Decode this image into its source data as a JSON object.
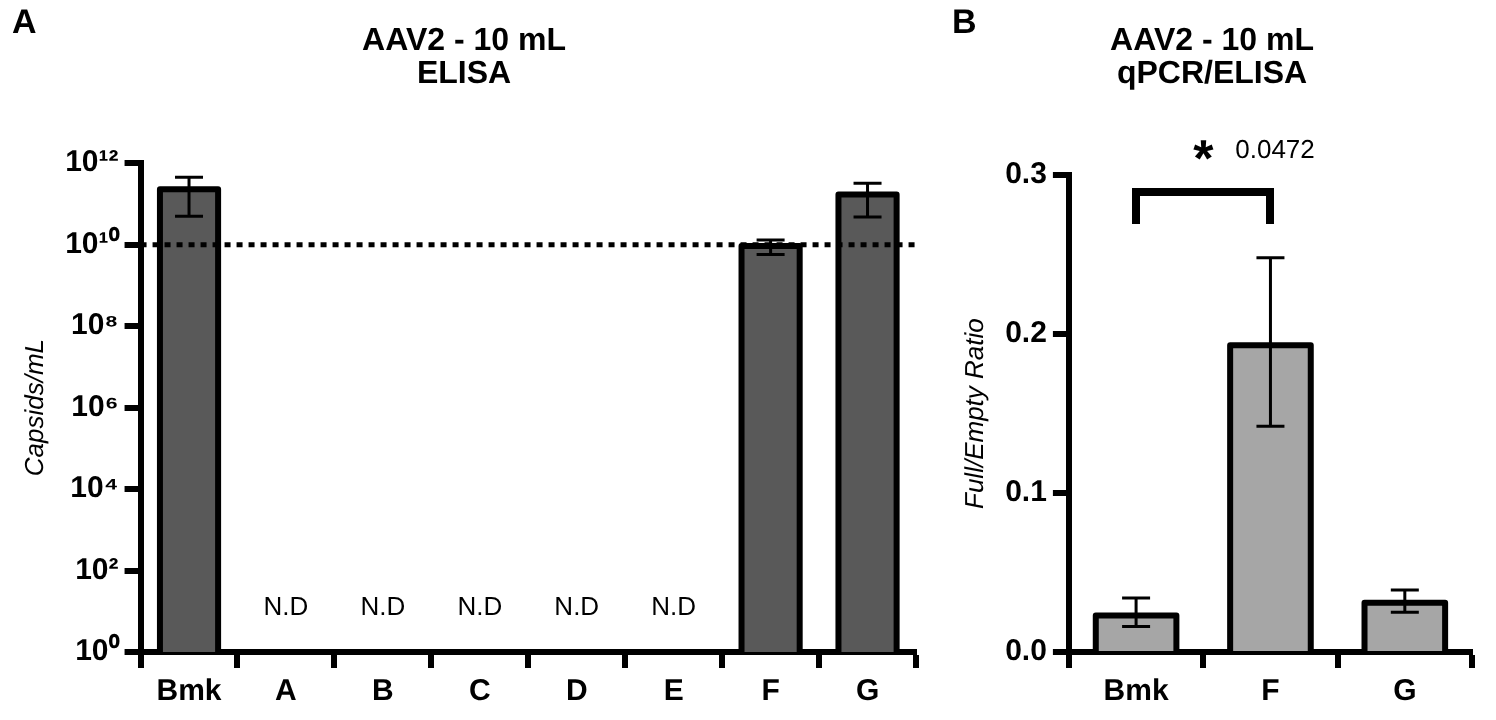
{
  "chart_data": [
    {
      "type": "bar",
      "title": "AAV2 - 10 mL\nELISA",
      "ylabel": "Capsids/mL",
      "annotations": [
        "A"
      ],
      "categories": [
        "Bmk",
        "A",
        "B",
        "C",
        "D",
        "E",
        "F",
        "G"
      ],
      "series": [
        {
          "color": "#595959",
          "values": [
            230000000000.0,
            null,
            null,
            null,
            null,
            null,
            9300000000.0,
            170000000000.0
          ],
          "errors": [
            [
              50000000000.0,
              450000000000.0
            ],
            null,
            null,
            null,
            null,
            null,
            [
              5700000000.0,
              13000000000.0
            ],
            [
              48000000000.0,
              320000000000.0
            ]
          ],
          "value_labels": [
            null,
            "N.D",
            "N.D",
            "N.D",
            "N.D",
            "N.D",
            null,
            null
          ]
        }
      ],
      "log": true,
      "ylim": [
        1,
        1000000000000.0
      ],
      "yticks": [
        {
          "value": 1,
          "label": "10⁰"
        },
        {
          "value": 100,
          "label": "10²"
        },
        {
          "value": 10000,
          "label": "10⁴"
        },
        {
          "value": 1000000,
          "label": "10⁶"
        },
        {
          "value": 100000000,
          "label": "10⁸"
        },
        {
          "value": 10000000000,
          "label": "10¹⁰"
        },
        {
          "value": 1000000000000,
          "label": "10¹²"
        }
      ],
      "ref_lines": [
        {
          "axis": "y",
          "value": 10000000000.0,
          "line_style": "dotted",
          "color": "#000000"
        }
      ],
      "grid": false,
      "legend": false
    },
    {
      "type": "bar",
      "title": "AAV2 - 10 mL\nqPCR/ELISA",
      "ylabel": "Full/Empty Ratio",
      "annotations": [
        "B",
        "*",
        "0.0472"
      ],
      "categories": [
        "Bmk",
        "F",
        "G"
      ],
      "series": [
        {
          "color": "#a6a6a6",
          "values": [
            0.023,
            0.193,
            0.031
          ],
          "errors": [
            [
              0.016,
              0.034
            ],
            [
              0.142,
              0.248
            ],
            [
              0.025,
              0.039
            ]
          ]
        }
      ],
      "ylim": [
        0,
        0.3
      ],
      "yticks": [
        {
          "value": 0,
          "label": "0.0"
        },
        {
          "value": 0.1,
          "label": "0.1"
        },
        {
          "value": 0.2,
          "label": "0.2"
        },
        {
          "value": 0.3,
          "label": "0.3"
        }
      ],
      "grid": false,
      "legend": false
    }
  ]
}
